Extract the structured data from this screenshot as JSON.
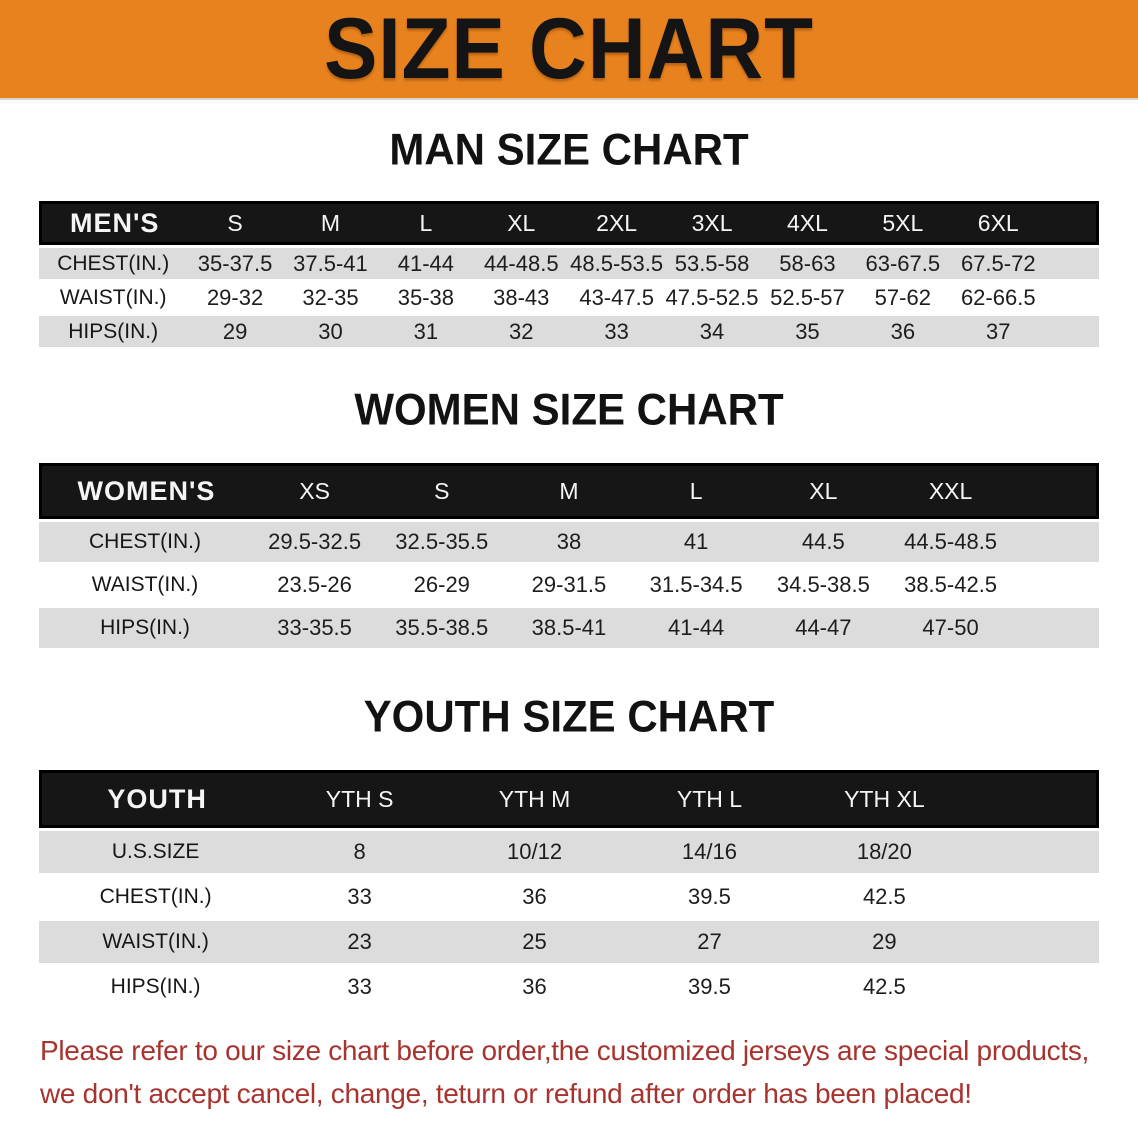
{
  "banner": {
    "title": "SIZE CHART"
  },
  "sections": [
    {
      "heading": "MAN SIZE CHART",
      "table": {
        "label": "MEN'S",
        "columns": [
          "S",
          "M",
          "L",
          "XL",
          "2XL",
          "3XL",
          "4XL",
          "5XL",
          "6XL"
        ],
        "rows": [
          {
            "label": "CHEST(IN.)",
            "values": [
              "35-37.5",
              "37.5-41",
              "41-44",
              "44-48.5",
              "48.5-53.5",
              "53.5-58",
              "58-63",
              "63-67.5",
              "67.5-72"
            ]
          },
          {
            "label": "WAIST(IN.)",
            "values": [
              "29-32",
              "32-35",
              "35-38",
              "38-43",
              "43-47.5",
              "47.5-52.5",
              "52.5-57",
              "57-62",
              "62-66.5"
            ]
          },
          {
            "label": "HIPS(IN.)",
            "values": [
              "29",
              "30",
              "31",
              "32",
              "33",
              "34",
              "35",
              "36",
              "37"
            ]
          }
        ]
      }
    },
    {
      "heading": "WOMEN SIZE CHART",
      "table": {
        "label": "WOMEN'S",
        "columns": [
          "XS",
          "S",
          "M",
          "L",
          "XL",
          "XXL"
        ],
        "rows": [
          {
            "label": "CHEST(IN.)",
            "values": [
              "29.5-32.5",
              "32.5-35.5",
              "38",
              "41",
              "44.5",
              "44.5-48.5"
            ]
          },
          {
            "label": "WAIST(IN.)",
            "values": [
              "23.5-26",
              "26-29",
              "29-31.5",
              "31.5-34.5",
              "34.5-38.5",
              "38.5-42.5"
            ]
          },
          {
            "label": "HIPS(IN.)",
            "values": [
              "33-35.5",
              "35.5-38.5",
              "38.5-41",
              "41-44",
              "44-47",
              "47-50"
            ]
          }
        ]
      }
    },
    {
      "heading": "YOUTH SIZE CHART",
      "table": {
        "label": "YOUTH",
        "columns": [
          "YTH S",
          "YTH M",
          "YTH L",
          "YTH XL"
        ],
        "rows": [
          {
            "label": "U.S.SIZE",
            "values": [
              "8",
              "10/12",
              "14/16",
              "18/20"
            ]
          },
          {
            "label": "CHEST(IN.)",
            "values": [
              "33",
              "36",
              "39.5",
              "42.5"
            ]
          },
          {
            "label": "WAIST(IN.)",
            "values": [
              "23",
              "25",
              "27",
              "29"
            ]
          },
          {
            "label": "HIPS(IN.)",
            "values": [
              "33",
              "36",
              "39.5",
              "42.5"
            ]
          }
        ]
      }
    }
  ],
  "notice": {
    "line1": "Please refer to our size chart before order,the customized jerseys are special products,",
    "line2": "we don't accept cancel, change, teturn or refund after order has been placed!"
  },
  "colors": {
    "banner_bg": "#E8821E",
    "header_bar_bg": "#161616",
    "row_stripe": "#DCDCDC",
    "notice_text": "#A8332E"
  }
}
